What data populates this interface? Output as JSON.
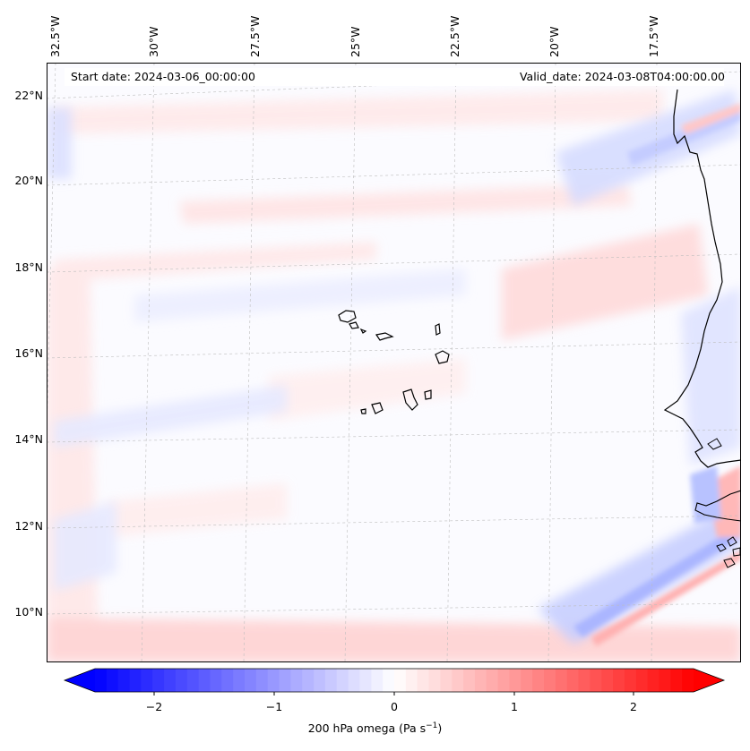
{
  "map": {
    "start_date": "Start date: 2024-03-06_00:00:00",
    "valid_date": "Valid_date: 2024-03-08T04:00:00.00",
    "lon_labels": [
      "32.5°W",
      "30°W",
      "27.5°W",
      "25°W",
      "22.5°W",
      "20°W",
      "17.5°W"
    ],
    "lat_labels": [
      "22°N",
      "20°N",
      "18°N",
      "16°N",
      "14°N",
      "12°N",
      "10°N"
    ],
    "field": "200 hPa omega"
  },
  "colorbar": {
    "label_text": "200 hPa omega (Pa s",
    "label_exp": "−1",
    "label_close": ")",
    "ticks": [
      "−2",
      "−1",
      "0",
      "1",
      "2"
    ],
    "min": -2.6,
    "max": 2.6,
    "low_color": "#0000ff",
    "high_color": "#ff0000"
  },
  "colors": {
    "coastline": "#000000",
    "gridline": "#bdbdbd",
    "blue_anomaly": "#c8d0ff",
    "red_anomaly": "#ffd6d6"
  }
}
